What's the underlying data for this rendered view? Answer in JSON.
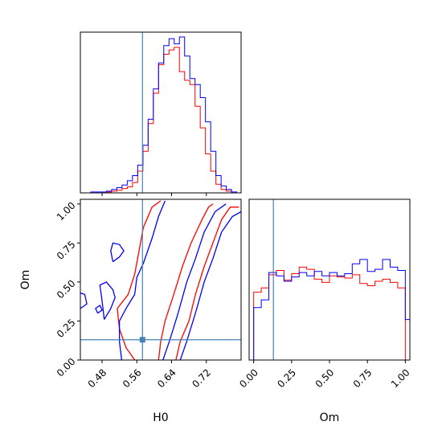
{
  "chart_data": {
    "type": "corner",
    "parameters": [
      "H0",
      "Om"
    ],
    "truths": {
      "H0": 0.573,
      "Om": 0.13
    },
    "truth_color": "#4682b4",
    "series": [
      {
        "color": "#ff0000"
      },
      {
        "color": "#0000ff"
      }
    ],
    "panels": {
      "hist_H0": {
        "type": "histogram",
        "xlim": [
          0.43,
          0.8
        ],
        "bin_edges": [
          0.43,
          0.442,
          0.454,
          0.466,
          0.478,
          0.49,
          0.502,
          0.514,
          0.526,
          0.538,
          0.55,
          0.562,
          0.574,
          0.586,
          0.598,
          0.61,
          0.622,
          0.634,
          0.646,
          0.658,
          0.67,
          0.682,
          0.694,
          0.706,
          0.718,
          0.73,
          0.742,
          0.754,
          0.766,
          0.778,
          0.79,
          0.8
        ],
        "counts": [
          [
            0,
            0,
            0,
            0,
            0,
            1,
            2,
            3,
            5,
            7,
            12,
            25,
            48,
            80,
            115,
            148,
            160,
            165,
            168,
            140,
            130,
            125,
            100,
            75,
            45,
            25,
            10,
            4,
            2,
            0,
            0
          ],
          [
            0,
            0,
            1,
            1,
            1,
            2,
            4,
            6,
            9,
            14,
            20,
            32,
            55,
            85,
            120,
            150,
            170,
            178,
            172,
            180,
            158,
            132,
            125,
            110,
            82,
            48,
            20,
            8,
            4,
            1,
            0
          ]
        ]
      },
      "hist_Om": {
        "type": "histogram",
        "xlim": [
          -0.03,
          1.03
        ],
        "bin_edges": [
          -0.03,
          0.0,
          0.05,
          0.1,
          0.15,
          0.2,
          0.25,
          0.3,
          0.35,
          0.4,
          0.45,
          0.5,
          0.55,
          0.6,
          0.65,
          0.7,
          0.75,
          0.8,
          0.85,
          0.9,
          0.95,
          1.0,
          1.03
        ],
        "counts": [
          [
            0,
            62,
            66,
            78,
            82,
            73,
            79,
            85,
            83,
            74,
            71,
            77,
            76,
            75,
            78,
            70,
            68,
            72,
            74,
            71,
            66,
            0
          ],
          [
            0,
            48,
            55,
            80,
            77,
            72,
            76,
            80,
            77,
            81,
            77,
            80,
            77,
            79,
            88,
            92,
            81,
            83,
            92,
            85,
            82,
            37
          ]
        ]
      },
      "contour_H0_Om": {
        "type": "contour",
        "xlim": [
          0.43,
          0.8
        ],
        "ylim": [
          0.0,
          1.03
        ],
        "xticks": [
          0.48,
          0.56,
          0.64,
          0.72
        ],
        "yticks": [
          0.0,
          0.25,
          0.5,
          0.75,
          1.0
        ],
        "contours": [
          {
            "series": 0,
            "level": "outer-left",
            "points": [
              [
                0.555,
                0.0
              ],
              [
                0.535,
                0.08
              ],
              [
                0.52,
                0.2
              ],
              [
                0.515,
                0.33
              ],
              [
                0.54,
                0.42
              ],
              [
                0.555,
                0.55
              ],
              [
                0.565,
                0.7
              ],
              [
                0.575,
                0.85
              ],
              [
                0.595,
                0.98
              ],
              [
                0.615,
                1.02
              ]
            ]
          },
          {
            "series": 0,
            "level": "inner-left",
            "points": [
              [
                0.61,
                0.0
              ],
              [
                0.615,
                0.12
              ],
              [
                0.625,
                0.25
              ],
              [
                0.645,
                0.42
              ],
              [
                0.665,
                0.6
              ],
              [
                0.685,
                0.75
              ],
              [
                0.71,
                0.9
              ],
              [
                0.725,
                0.98
              ],
              [
                0.735,
                1.0
              ]
            ]
          },
          {
            "series": 0,
            "level": "inner-right",
            "points": [
              [
                0.65,
                0.0
              ],
              [
                0.66,
                0.12
              ],
              [
                0.68,
                0.25
              ],
              [
                0.695,
                0.42
              ],
              [
                0.715,
                0.6
              ],
              [
                0.735,
                0.75
              ],
              [
                0.755,
                0.9
              ],
              [
                0.775,
                0.98
              ],
              [
                0.795,
                0.98
              ]
            ]
          },
          {
            "series": 1,
            "level": "outer-left",
            "points": [
              [
                0.525,
                0.0
              ],
              [
                0.52,
                0.12
              ],
              [
                0.52,
                0.25
              ],
              [
                0.535,
                0.33
              ],
              [
                0.555,
                0.42
              ],
              [
                0.56,
                0.53
              ],
              [
                0.575,
                0.62
              ],
              [
                0.595,
                0.78
              ],
              [
                0.61,
                0.92
              ],
              [
                0.625,
                1.02
              ]
            ]
          },
          {
            "series": 1,
            "level": "inner-left",
            "points": [
              [
                0.62,
                0.0
              ],
              [
                0.635,
                0.12
              ],
              [
                0.655,
                0.3
              ],
              [
                0.675,
                0.5
              ],
              [
                0.695,
                0.65
              ],
              [
                0.715,
                0.82
              ],
              [
                0.74,
                0.95
              ],
              [
                0.765,
                1.0
              ]
            ]
          },
          {
            "series": 1,
            "level": "inner-right",
            "points": [
              [
                0.66,
                0.0
              ],
              [
                0.675,
                0.12
              ],
              [
                0.695,
                0.3
              ],
              [
                0.715,
                0.5
              ],
              [
                0.735,
                0.65
              ],
              [
                0.755,
                0.82
              ],
              [
                0.78,
                0.92
              ],
              [
                0.8,
                0.95
              ]
            ]
          },
          {
            "series": 1,
            "level": "island-1",
            "points": [
              [
                0.505,
                0.63
              ],
              [
                0.52,
                0.66
              ],
              [
                0.53,
                0.7
              ],
              [
                0.52,
                0.74
              ],
              [
                0.505,
                0.75
              ],
              [
                0.5,
                0.7
              ],
              [
                0.505,
                0.63
              ]
            ]
          },
          {
            "series": 1,
            "level": "island-2",
            "points": [
              [
                0.485,
                0.26
              ],
              [
                0.5,
                0.33
              ],
              [
                0.51,
                0.4
              ],
              [
                0.505,
                0.45
              ],
              [
                0.49,
                0.5
              ],
              [
                0.475,
                0.48
              ],
              [
                0.48,
                0.38
              ],
              [
                0.485,
                0.26
              ]
            ]
          },
          {
            "series": 1,
            "level": "island-3",
            "points": [
              [
                0.43,
                0.33
              ],
              [
                0.445,
                0.36
              ],
              [
                0.44,
                0.42
              ],
              [
                0.43,
                0.43
              ]
            ]
          },
          {
            "series": 1,
            "level": "island-4",
            "points": [
              [
                0.47,
                0.3
              ],
              [
                0.48,
                0.32
              ],
              [
                0.475,
                0.35
              ],
              [
                0.465,
                0.33
              ],
              [
                0.47,
                0.3
              ]
            ]
          }
        ]
      },
      "axis_H0": {
        "xticks": [
          0.48,
          0.56,
          0.64,
          0.72
        ],
        "xtick_labels": [
          "0.48",
          "0.56",
          "0.64",
          "0.72"
        ],
        "xlabel": "H0"
      },
      "axis_Om_x": {
        "xticks": [
          0.0,
          0.25,
          0.5,
          0.75,
          1.0
        ],
        "xtick_labels": [
          "0.00",
          "0.25",
          "0.50",
          "0.75",
          "1.00"
        ],
        "xlabel": "Om"
      },
      "axis_Om_y": {
        "yticks": [
          0.0,
          0.25,
          0.5,
          0.75,
          1.0
        ],
        "ytick_labels": [
          "0.00",
          "0.25",
          "0.50",
          "0.75",
          "1.00"
        ],
        "ylabel": "Om"
      }
    }
  }
}
